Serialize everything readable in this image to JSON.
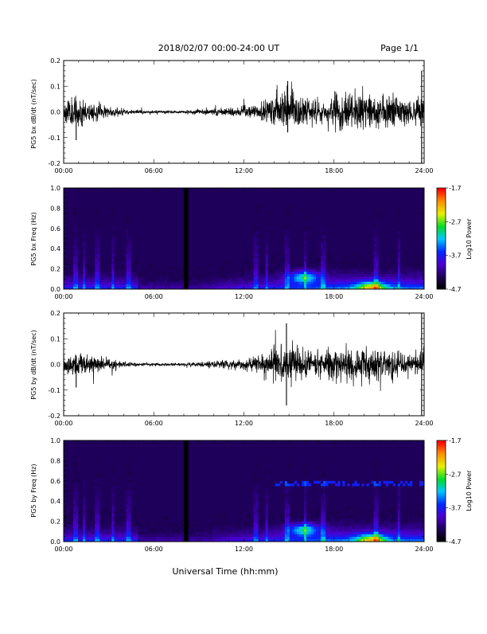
{
  "header": {
    "date_range": "2018/02/07  00:00-24:00 UT",
    "page": "Page 1/1"
  },
  "footer": {
    "xlabel": "Universal Time (hh:mm)"
  },
  "chart_data": [
    {
      "type": "line",
      "ylabel": "PG5 bx dB/dt (nT/sec)",
      "xlim": [
        "00:00",
        "24:00"
      ],
      "x_ticks": [
        "00:00",
        "06:00",
        "12:00",
        "18:00",
        "24:00"
      ],
      "ylim": [
        -0.2,
        0.2
      ],
      "y_ticks": [
        "-0.2",
        "-0.1",
        "0.0",
        "0.1",
        "0.2"
      ],
      "series": [
        {
          "envelope_hours": [
            0,
            1,
            2,
            3,
            4,
            5,
            6,
            7,
            8,
            9,
            10,
            11,
            12,
            13,
            14,
            15,
            16,
            17,
            18,
            19,
            20,
            21,
            22,
            23,
            24
          ],
          "amplitude": [
            0.04,
            0.05,
            0.03,
            0.02,
            0.01,
            0.006,
            0.005,
            0.005,
            0.005,
            0.01,
            0.012,
            0.015,
            0.02,
            0.025,
            0.05,
            0.07,
            0.05,
            0.04,
            0.06,
            0.07,
            0.06,
            0.05,
            0.05,
            0.04,
            0.05
          ],
          "spikes": [
            {
              "time": "14:55",
              "min": -0.08,
              "max": 0.12
            },
            {
              "time": "00:50",
              "min": -0.11,
              "max": 0.04
            },
            {
              "time": "23:50",
              "min": -0.2,
              "max": 0.16
            }
          ]
        }
      ]
    },
    {
      "type": "heatmap",
      "ylabel": "PG5 bx Freq (Hz)",
      "xlim": [
        "00:00",
        "24:00"
      ],
      "x_ticks": [
        "00:00",
        "06:00",
        "12:00",
        "18:00",
        "24:00"
      ],
      "ylim": [
        0.0,
        1.0
      ],
      "y_ticks": [
        "0.0",
        "0.2",
        "0.4",
        "0.6",
        "0.8",
        "1.0"
      ],
      "colorbar": {
        "label": "Log10 Power",
        "ticks": [
          "-1.7",
          "-2.7",
          "-3.7",
          "-4.7"
        ],
        "range": [
          -4.7,
          -1.7
        ]
      },
      "data_gap_hours": [
        8.0,
        8.3
      ],
      "enhancements": [
        {
          "time_hours": 16.0,
          "freq_hz": 0.12,
          "log_power": -2.6
        },
        {
          "time_hours": 20.5,
          "freq_hz": 0.02,
          "log_power": -2.5
        }
      ]
    },
    {
      "type": "line",
      "ylabel": "PG5 by dB/dt (nT/sec)",
      "xlim": [
        "00:00",
        "24:00"
      ],
      "x_ticks": [
        "00:00",
        "06:00",
        "12:00",
        "18:00",
        "24:00"
      ],
      "ylim": [
        -0.2,
        0.2
      ],
      "y_ticks": [
        "-0.2",
        "-0.1",
        "0.0",
        "0.1",
        "0.2"
      ],
      "series": [
        {
          "envelope_hours": [
            0,
            1,
            2,
            3,
            4,
            5,
            6,
            7,
            8,
            9,
            10,
            11,
            12,
            13,
            14,
            15,
            16,
            17,
            18,
            19,
            20,
            21,
            22,
            23,
            24
          ],
          "amplitude": [
            0.03,
            0.04,
            0.03,
            0.02,
            0.01,
            0.006,
            0.005,
            0.005,
            0.005,
            0.01,
            0.012,
            0.015,
            0.02,
            0.025,
            0.05,
            0.06,
            0.04,
            0.04,
            0.05,
            0.07,
            0.06,
            0.05,
            0.05,
            0.03,
            0.04
          ],
          "spikes": [
            {
              "time": "14:50",
              "min": -0.16,
              "max": 0.16
            },
            {
              "time": "00:50",
              "min": -0.09,
              "max": 0.03
            },
            {
              "time": "23:50",
              "min": -0.2,
              "max": 0.2
            }
          ]
        }
      ]
    },
    {
      "type": "heatmap",
      "ylabel": "PG5 by Freq (Hz)",
      "xlim": [
        "00:00",
        "24:00"
      ],
      "x_ticks": [
        "00:00",
        "06:00",
        "12:00",
        "18:00",
        "24:00"
      ],
      "ylim": [
        0.0,
        1.0
      ],
      "y_ticks": [
        "0.0",
        "0.2",
        "0.4",
        "0.6",
        "0.8",
        "1.0"
      ],
      "colorbar": {
        "label": "Log10 Power",
        "ticks": [
          "-1.7",
          "-2.7",
          "-3.7",
          "-4.7"
        ],
        "range": [
          -4.7,
          -1.7
        ]
      },
      "data_gap_hours": [
        8.0,
        8.3
      ],
      "harmonic_line_hz": 0.57,
      "enhancements": [
        {
          "time_hours": 16.0,
          "freq_hz": 0.12,
          "log_power": -2.6
        },
        {
          "time_hours": 20.5,
          "freq_hz": 0.02,
          "log_power": -2.5
        }
      ]
    }
  ]
}
